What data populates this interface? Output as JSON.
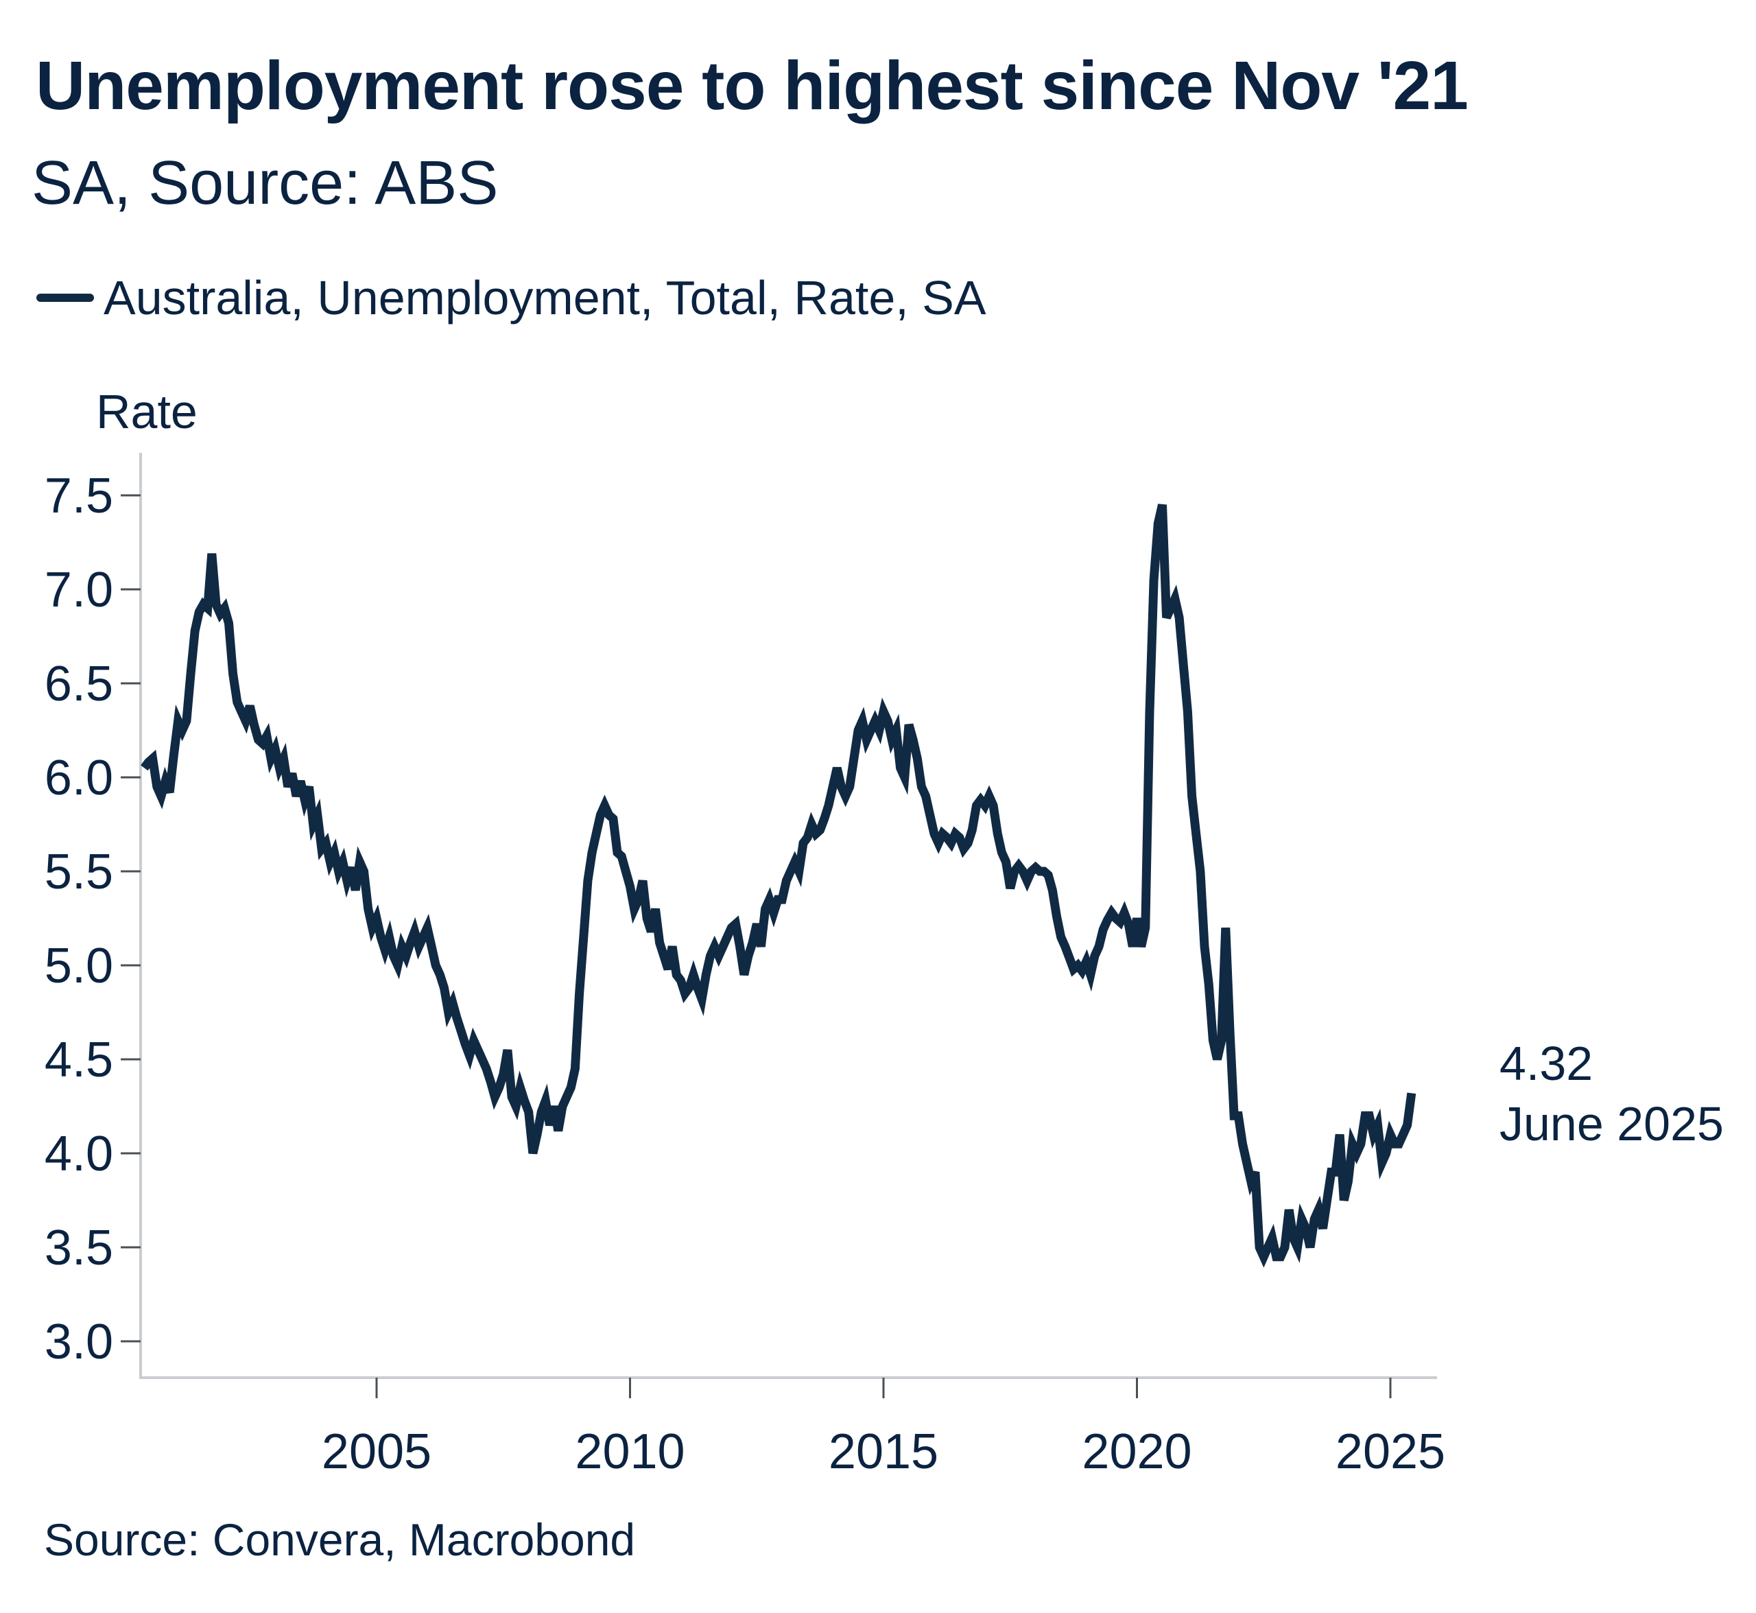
{
  "header": {
    "title": "Unemployment rose to highest since Nov '21",
    "subtitle": "SA, Source: ABS"
  },
  "legend": {
    "label": "Australia, Unemployment, Total, Rate, SA"
  },
  "annotation": {
    "value": "4.32",
    "date": "June 2025"
  },
  "footer": {
    "source": "Source: Convera, Macrobond"
  },
  "colors": {
    "text_navy": "#0b2341",
    "line_navy": "#112a44",
    "axis_spine": "#c9cdd1",
    "tick_mark": "#4b5056",
    "background": "#ffffff"
  },
  "chart_data": {
    "type": "line",
    "title": "Unemployment rose to highest since Nov '21",
    "subtitle": "SA, Source: ABS",
    "xlabel": "",
    "ylabel": "Rate",
    "grid": false,
    "legend_position": "top-left",
    "x_ticks": [
      2005,
      2010,
      2015,
      2020,
      2025
    ],
    "y_ticks": [
      3.0,
      3.5,
      4.0,
      4.5,
      5.0,
      5.5,
      6.0,
      6.5,
      7.0,
      7.5
    ],
    "xlim": [
      2000.35,
      2025.92
    ],
    "ylim": [
      2.81,
      7.73
    ],
    "last_point": {
      "value": 4.32,
      "label_value": "4.32",
      "label_date": "June 2025"
    },
    "series": [
      {
        "name": "Australia, Unemployment, Total, Rate, SA",
        "color": "#112a44",
        "frequency": "monthly",
        "start_year": 2000,
        "start_month": 6,
        "unit": "percent",
        "values": [
          6.05,
          6.08,
          6.1,
          5.95,
          5.9,
          5.98,
          5.92,
          6.12,
          6.3,
          6.25,
          6.3,
          6.55,
          6.78,
          6.88,
          6.92,
          6.9,
          7.19,
          6.92,
          6.87,
          6.9,
          6.82,
          6.55,
          6.4,
          6.35,
          6.3,
          6.38,
          6.28,
          6.2,
          6.18,
          6.22,
          6.1,
          6.15,
          6.05,
          6.1,
          5.95,
          6.02,
          5.9,
          5.98,
          5.88,
          5.95,
          5.75,
          5.8,
          5.62,
          5.65,
          5.55,
          5.6,
          5.5,
          5.55,
          5.45,
          5.52,
          5.4,
          5.55,
          5.5,
          5.3,
          5.2,
          5.25,
          5.15,
          5.08,
          5.15,
          5.05,
          5.0,
          5.1,
          5.05,
          5.12,
          5.18,
          5.1,
          5.15,
          5.2,
          5.1,
          5.0,
          4.95,
          4.88,
          4.75,
          4.8,
          4.72,
          4.65,
          4.58,
          4.52,
          4.6,
          4.55,
          4.5,
          4.45,
          4.38,
          4.3,
          4.35,
          4.42,
          4.55,
          4.3,
          4.25,
          4.35,
          4.28,
          4.22,
          4.0,
          4.1,
          4.22,
          4.28,
          4.15,
          4.25,
          4.12,
          4.25,
          4.3,
          4.35,
          4.45,
          4.85,
          5.15,
          5.45,
          5.6,
          5.7,
          5.8,
          5.85,
          5.8,
          5.78,
          5.6,
          5.58,
          5.5,
          5.42,
          5.3,
          5.35,
          5.45,
          5.25,
          5.18,
          5.3,
          5.12,
          5.05,
          4.98,
          5.1,
          4.95,
          4.92,
          4.85,
          4.88,
          4.95,
          4.88,
          4.82,
          4.95,
          5.05,
          5.1,
          5.05,
          5.1,
          5.15,
          5.2,
          5.22,
          5.1,
          4.95,
          5.05,
          5.12,
          5.22,
          5.1,
          5.3,
          5.35,
          5.28,
          5.35,
          5.35,
          5.45,
          5.5,
          5.55,
          5.5,
          5.65,
          5.68,
          5.75,
          5.7,
          5.72,
          5.78,
          5.85,
          5.95,
          6.05,
          5.95,
          5.9,
          5.95,
          6.1,
          6.25,
          6.3,
          6.2,
          6.25,
          6.3,
          6.25,
          6.35,
          6.3,
          6.2,
          6.25,
          6.05,
          6.0,
          6.28,
          6.2,
          6.1,
          5.95,
          5.9,
          5.8,
          5.7,
          5.65,
          5.7,
          5.68,
          5.65,
          5.7,
          5.68,
          5.62,
          5.65,
          5.72,
          5.85,
          5.88,
          5.85,
          5.9,
          5.85,
          5.7,
          5.6,
          5.55,
          5.41,
          5.5,
          5.53,
          5.5,
          5.45,
          5.5,
          5.52,
          5.5,
          5.5,
          5.48,
          5.4,
          5.26,
          5.15,
          5.1,
          5.04,
          4.98,
          5.0,
          4.97,
          5.02,
          4.95,
          5.05,
          5.1,
          5.19,
          5.24,
          5.28,
          5.25,
          5.23,
          5.28,
          5.22,
          5.1,
          5.25,
          5.1,
          5.2,
          6.35,
          7.05,
          7.35,
          7.45,
          6.85,
          6.9,
          6.95,
          6.85,
          6.6,
          6.35,
          5.9,
          5.7,
          5.5,
          5.1,
          4.9,
          4.6,
          4.5,
          4.6,
          5.2,
          4.65,
          4.2,
          4.2,
          4.05,
          3.95,
          3.85,
          3.9,
          3.5,
          3.45,
          3.5,
          3.55,
          3.45,
          3.45,
          3.5,
          3.7,
          3.55,
          3.5,
          3.65,
          3.6,
          3.5,
          3.65,
          3.7,
          3.6,
          3.75,
          3.9,
          3.9,
          4.1,
          3.75,
          3.85,
          4.05,
          4.0,
          4.05,
          4.2,
          4.2,
          4.1,
          4.15,
          3.95,
          4.0,
          4.1,
          4.05,
          4.05,
          4.1,
          4.15,
          4.32
        ]
      }
    ]
  }
}
